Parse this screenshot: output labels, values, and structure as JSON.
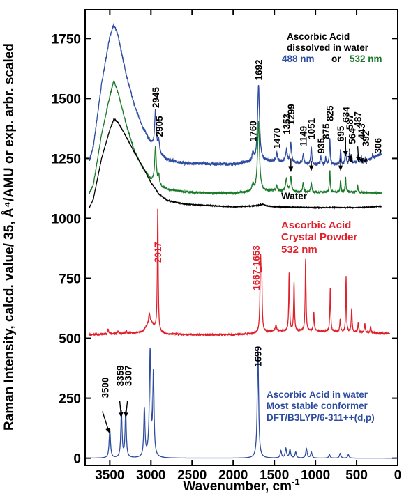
{
  "chart_data": {
    "type": "line",
    "xlabel": "Wavenumber, cm",
    "xlabel_sup": "-1",
    "ylabel": "Raman Intensity, calcd. value/ 35, Å⁴/AMU or exp. arbr. scaled",
    "xlim": [
      3800,
      0
    ],
    "ylim": [
      -30,
      1870
    ],
    "x_ticks": [
      3500,
      3000,
      2500,
      2000,
      1500,
      1000,
      500,
      0
    ],
    "x_tick_labels": [
      "3500",
      "3000",
      "2500",
      "2000",
      "1500",
      "1000",
      "500",
      "0"
    ],
    "y_ticks": [
      0,
      250,
      500,
      750,
      1000,
      1250,
      1500,
      1750
    ],
    "y_tick_labels": [
      "0",
      "250",
      "500",
      "750",
      "1000",
      "1250",
      "1500",
      "1750"
    ],
    "series": [
      {
        "color": "#2e4da0",
        "noise": 12,
        "baseline": [
          [
            3750,
            1240
          ],
          [
            3700,
            1300
          ],
          [
            3600,
            1560
          ],
          [
            3500,
            1760
          ],
          [
            3450,
            1810
          ],
          [
            3400,
            1760
          ],
          [
            3300,
            1600
          ],
          [
            3200,
            1470
          ],
          [
            3100,
            1380
          ],
          [
            3000,
            1315
          ],
          [
            2900,
            1270
          ],
          [
            2800,
            1245
          ],
          [
            2600,
            1230
          ],
          [
            2000,
            1225
          ],
          [
            1800,
            1235
          ],
          [
            1500,
            1240
          ],
          [
            1200,
            1230
          ],
          [
            1000,
            1225
          ],
          [
            700,
            1225
          ],
          [
            400,
            1235
          ],
          [
            200,
            1270
          ]
        ],
        "peaks": [
          [
            2945,
            160,
            12
          ],
          [
            2905,
            50,
            10
          ],
          [
            1760,
            30,
            12
          ],
          [
            1692,
            320,
            14
          ],
          [
            1470,
            30,
            10
          ],
          [
            1353,
            50,
            12
          ],
          [
            1299,
            80,
            10
          ],
          [
            1149,
            40,
            8
          ],
          [
            1051,
            70,
            8
          ],
          [
            935,
            30,
            8
          ],
          [
            875,
            30,
            6
          ],
          [
            825,
            110,
            6
          ],
          [
            695,
            60,
            6
          ],
          [
            634,
            70,
            6
          ],
          [
            587,
            40,
            6
          ],
          [
            564,
            30,
            6
          ],
          [
            487,
            35,
            6
          ],
          [
            443,
            25,
            6
          ],
          [
            392,
            20,
            6
          ],
          [
            306,
            15,
            6
          ]
        ]
      },
      {
        "color": "#1a7a2a",
        "noise": 8,
        "baseline": [
          [
            3750,
            1105
          ],
          [
            3700,
            1140
          ],
          [
            3600,
            1350
          ],
          [
            3500,
            1510
          ],
          [
            3450,
            1575
          ],
          [
            3400,
            1525
          ],
          [
            3300,
            1390
          ],
          [
            3200,
            1280
          ],
          [
            3100,
            1210
          ],
          [
            3000,
            1160
          ],
          [
            2900,
            1135
          ],
          [
            2800,
            1120
          ],
          [
            2500,
            1108
          ],
          [
            2000,
            1105
          ],
          [
            1800,
            1110
          ],
          [
            1500,
            1115
          ],
          [
            1200,
            1110
          ],
          [
            1000,
            1108
          ],
          [
            600,
            1110
          ],
          [
            200,
            1105
          ]
        ],
        "peaks": [
          [
            2945,
            150,
            12
          ],
          [
            2905,
            40,
            10
          ],
          [
            1760,
            30,
            12
          ],
          [
            1692,
            290,
            14
          ],
          [
            1470,
            20,
            10
          ],
          [
            1353,
            50,
            12
          ],
          [
            1299,
            60,
            10
          ],
          [
            1149,
            40,
            8
          ],
          [
            1051,
            40,
            8
          ],
          [
            825,
            90,
            6
          ],
          [
            695,
            50,
            6
          ],
          [
            634,
            60,
            6
          ],
          [
            487,
            30,
            6
          ]
        ]
      },
      {
        "color": "#000000",
        "noise": 3,
        "baseline": [
          [
            3750,
            1045
          ],
          [
            3700,
            1080
          ],
          [
            3600,
            1250
          ],
          [
            3500,
            1370
          ],
          [
            3450,
            1415
          ],
          [
            3400,
            1400
          ],
          [
            3300,
            1340
          ],
          [
            3200,
            1275
          ],
          [
            3100,
            1215
          ],
          [
            3000,
            1150
          ],
          [
            2900,
            1100
          ],
          [
            2800,
            1075
          ],
          [
            2600,
            1060
          ],
          [
            2000,
            1048
          ],
          [
            1700,
            1052
          ],
          [
            1500,
            1048
          ],
          [
            1000,
            1045
          ],
          [
            500,
            1045
          ],
          [
            200,
            1050
          ]
        ],
        "peaks": [
          [
            1640,
            8,
            40
          ]
        ]
      },
      {
        "color": "#e0202a",
        "noise": 6,
        "baseline": [
          [
            3750,
            515
          ],
          [
            3500,
            518
          ],
          [
            3200,
            522
          ],
          [
            3100,
            530
          ],
          [
            3050,
            550
          ],
          [
            3000,
            565
          ],
          [
            2900,
            525
          ],
          [
            2800,
            518
          ],
          [
            2500,
            515
          ],
          [
            2000,
            515
          ],
          [
            1700,
            520
          ],
          [
            1500,
            530
          ],
          [
            1000,
            530
          ],
          [
            500,
            525
          ],
          [
            100,
            520
          ]
        ],
        "peaks": [
          [
            3520,
            20,
            8
          ],
          [
            3400,
            12,
            8
          ],
          [
            3300,
            12,
            8
          ],
          [
            3020,
            45,
            10
          ],
          [
            2917,
            520,
            6
          ],
          [
            1667,
            300,
            8
          ],
          [
            1653,
            200,
            6
          ],
          [
            1480,
            25,
            8
          ],
          [
            1320,
            240,
            6
          ],
          [
            1260,
            200,
            6
          ],
          [
            1120,
            300,
            6
          ],
          [
            1020,
            80,
            6
          ],
          [
            820,
            180,
            6
          ],
          [
            700,
            50,
            6
          ],
          [
            628,
            230,
            5
          ],
          [
            560,
            100,
            6
          ],
          [
            480,
            40,
            6
          ],
          [
            400,
            35,
            6
          ],
          [
            330,
            30,
            6
          ]
        ]
      },
      {
        "color": "#2e4da0",
        "noise": 0,
        "baseline": [
          [
            3750,
            0
          ],
          [
            0,
            0
          ]
        ],
        "peaks": [
          [
            3500,
            120,
            10
          ],
          [
            3359,
            195,
            9
          ],
          [
            3307,
            190,
            9
          ],
          [
            3080,
            200,
            9
          ],
          [
            3010,
            440,
            11
          ],
          [
            2970,
            340,
            9
          ],
          [
            1699,
            450,
            10
          ],
          [
            1420,
            30,
            10
          ],
          [
            1360,
            40,
            10
          ],
          [
            1310,
            35,
            10
          ],
          [
            1240,
            25,
            10
          ],
          [
            1110,
            40,
            10
          ],
          [
            1050,
            25,
            10
          ],
          [
            830,
            15,
            10
          ],
          [
            700,
            20,
            10
          ],
          [
            600,
            15,
            10
          ]
        ]
      }
    ],
    "annotations": [
      {
        "text": "Ascorbic Acid",
        "color": "#000000"
      },
      {
        "text": "dissolved in water",
        "color": "#000000"
      },
      {
        "text": "488 nm",
        "color": "#2e4da0"
      },
      {
        "text": "or",
        "color": "#000000"
      },
      {
        "text": "532 nm",
        "color": "#1a7a2a"
      },
      {
        "text": "Water",
        "color": "#000000"
      },
      {
        "text": "Ascorbic Acid",
        "color": "#e0202a"
      },
      {
        "text": "Crystal Powder",
        "color": "#e0202a"
      },
      {
        "text": "532 nm",
        "color": "#e0202a"
      },
      {
        "text": "Ascorbic Acid in water",
        "color": "#2e4da0"
      },
      {
        "text": "Most stable conformer",
        "color": "#2e4da0"
      },
      {
        "text": "DFT/B3LYP/6-311++(d,p)",
        "color": "#2e4da0"
      }
    ],
    "peak_labels": [
      {
        "text": "2945",
        "color": "#000000",
        "x": 2945,
        "y": 1460
      },
      {
        "text": "2905",
        "color": "#000000",
        "x": 2900,
        "y": 1340
      },
      {
        "text": "1692",
        "color": "#000000",
        "x": 1692,
        "y": 1575
      },
      {
        "text": "1760",
        "color": "#000000",
        "x": 1760,
        "y": 1320
      },
      {
        "text": "1470",
        "color": "#000000",
        "x": 1470,
        "y": 1290
      },
      {
        "text": "1353",
        "color": "#000000",
        "x": 1353,
        "y": 1350
      },
      {
        "text": "1299",
        "color": "#000000",
        "x": 1299,
        "y": 1390
      },
      {
        "text": "1149",
        "color": "#000000",
        "x": 1149,
        "y": 1300
      },
      {
        "text": "1051",
        "color": "#000000",
        "x": 1051,
        "y": 1330
      },
      {
        "text": "935",
        "color": "#000000",
        "x": 935,
        "y": 1270
      },
      {
        "text": "875",
        "color": "#000000",
        "x": 875,
        "y": 1330
      },
      {
        "text": "825",
        "color": "#000000",
        "x": 825,
        "y": 1405
      },
      {
        "text": "695",
        "color": "#000000",
        "x": 695,
        "y": 1320
      },
      {
        "text": "634",
        "color": "#000000",
        "x": 634,
        "y": 1400
      },
      {
        "text": "587",
        "color": "#000000",
        "x": 584,
        "y": 1370
      },
      {
        "text": "564",
        "color": "#000000",
        "x": 555,
        "y": 1310
      },
      {
        "text": "487",
        "color": "#000000",
        "x": 487,
        "y": 1380
      },
      {
        "text": "443",
        "color": "#000000",
        "x": 443,
        "y": 1330
      },
      {
        "text": "392",
        "color": "#000000",
        "x": 392,
        "y": 1300
      },
      {
        "text": "306",
        "color": "#000000",
        "x": 240,
        "y": 1270
      },
      {
        "text": "2917",
        "color": "#e0202a",
        "x": 2917,
        "y": 815
      },
      {
        "text": "1667-1653",
        "color": "#e0202a",
        "x": 1720,
        "y": 700
      },
      {
        "text": "3500",
        "color": "#000000",
        "x": 3560,
        "y": 250
      },
      {
        "text": "3359",
        "color": "#000000",
        "x": 3375,
        "y": 300
      },
      {
        "text": "3307",
        "color": "#000000",
        "x": 3280,
        "y": 300
      },
      {
        "text": "1699",
        "color": "#000000",
        "x": 1699,
        "y": 380
      }
    ],
    "arrows": [
      {
        "from": [
          3590,
          195
        ],
        "to": [
          3505,
          105
        ]
      },
      {
        "from": [
          3380,
          240
        ],
        "to": [
          3360,
          170
        ]
      },
      {
        "from": [
          3285,
          240
        ],
        "to": [
          3308,
          170
        ]
      },
      {
        "from": [
          1299,
          1250
        ],
        "to": [
          1299,
          1195
        ]
      },
      {
        "from": [
          1051,
          1240
        ],
        "to": [
          1051,
          1200
        ]
      },
      {
        "from": [
          695,
          1250
        ],
        "to": [
          695,
          1200
        ]
      },
      {
        "from": [
          634,
          1340
        ],
        "to": [
          634,
          1260
        ]
      },
      {
        "from": [
          587,
          1290
        ],
        "to": [
          575,
          1240
        ]
      },
      {
        "from": [
          564,
          1240
        ],
        "to": [
          550,
          1230
        ]
      },
      {
        "from": [
          487,
          1300
        ],
        "to": [
          475,
          1235
        ]
      },
      {
        "from": [
          443,
          1250
        ],
        "to": [
          430,
          1230
        ]
      },
      {
        "from": [
          392,
          1240
        ],
        "to": [
          380,
          1228
        ]
      }
    ]
  }
}
